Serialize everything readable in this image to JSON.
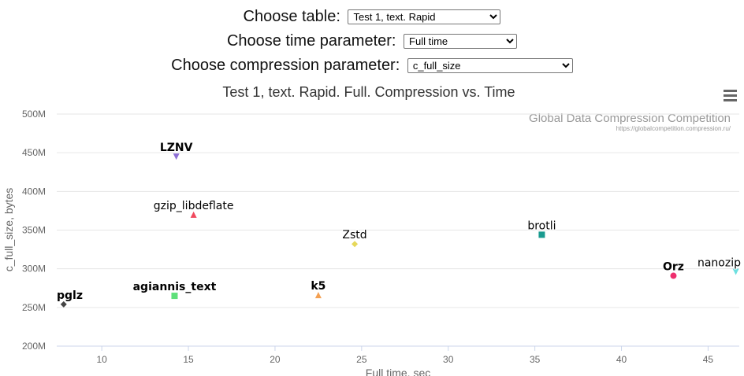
{
  "controls": {
    "table": {
      "label": "Choose table:",
      "selected": "Test 1, text. Rapid"
    },
    "time": {
      "label": "Choose time parameter:",
      "selected": "Full time"
    },
    "compression": {
      "label": "Choose compression parameter:",
      "selected": "c_full_size"
    }
  },
  "chart_data": {
    "type": "scatter",
    "title": "Test 1, text. Rapid. Full. Compression vs. Time",
    "credits": {
      "title": "Global Data Compression Competition",
      "url": "https://globalcompetition.compression.ru/"
    },
    "xlabel": "Full time, sec",
    "ylabel": "c_full_size, bytes",
    "xlim": [
      7.4,
      46.8
    ],
    "ylim": [
      200000000,
      500000000
    ],
    "xticks": [
      10,
      15,
      20,
      25,
      30,
      35,
      40,
      45
    ],
    "yticks": [
      200000000,
      250000000,
      300000000,
      350000000,
      400000000,
      450000000,
      500000000
    ],
    "ytick_labels": [
      "200M",
      "250M",
      "300M",
      "350M",
      "400M",
      "450M",
      "500M"
    ],
    "grid": true,
    "series": [
      {
        "name": "LZNV",
        "x": 14.3,
        "y": 445000000,
        "color": "#8e6fd6",
        "marker": "triangle-down",
        "bold": true
      },
      {
        "name": "gzip_libdeflate",
        "x": 15.3,
        "y": 370000000,
        "color": "#f04a5e",
        "marker": "triangle",
        "bold": false
      },
      {
        "name": "Zstd",
        "x": 24.6,
        "y": 332000000,
        "color": "#e6d85a",
        "marker": "diamond",
        "bold": false
      },
      {
        "name": "brotli",
        "x": 35.4,
        "y": 344000000,
        "color": "#1a9b90",
        "marker": "square",
        "bold": false
      },
      {
        "name": "Orz",
        "x": 43.0,
        "y": 291000000,
        "color": "#ee2f6e",
        "marker": "circle",
        "bold": true
      },
      {
        "name": "nanozip",
        "x": 46.6,
        "y": 296000000,
        "color": "#6ee0e0",
        "marker": "triangle-down",
        "bold": false
      },
      {
        "name": "pglz",
        "x": 7.8,
        "y": 254000000,
        "color": "#444444",
        "marker": "diamond",
        "bold": true
      },
      {
        "name": "agiannis_text",
        "x": 14.2,
        "y": 265000000,
        "color": "#5fe07a",
        "marker": "square",
        "bold": true
      },
      {
        "name": "k5",
        "x": 22.5,
        "y": 266000000,
        "color": "#f4a052",
        "marker": "triangle",
        "bold": true
      }
    ]
  }
}
